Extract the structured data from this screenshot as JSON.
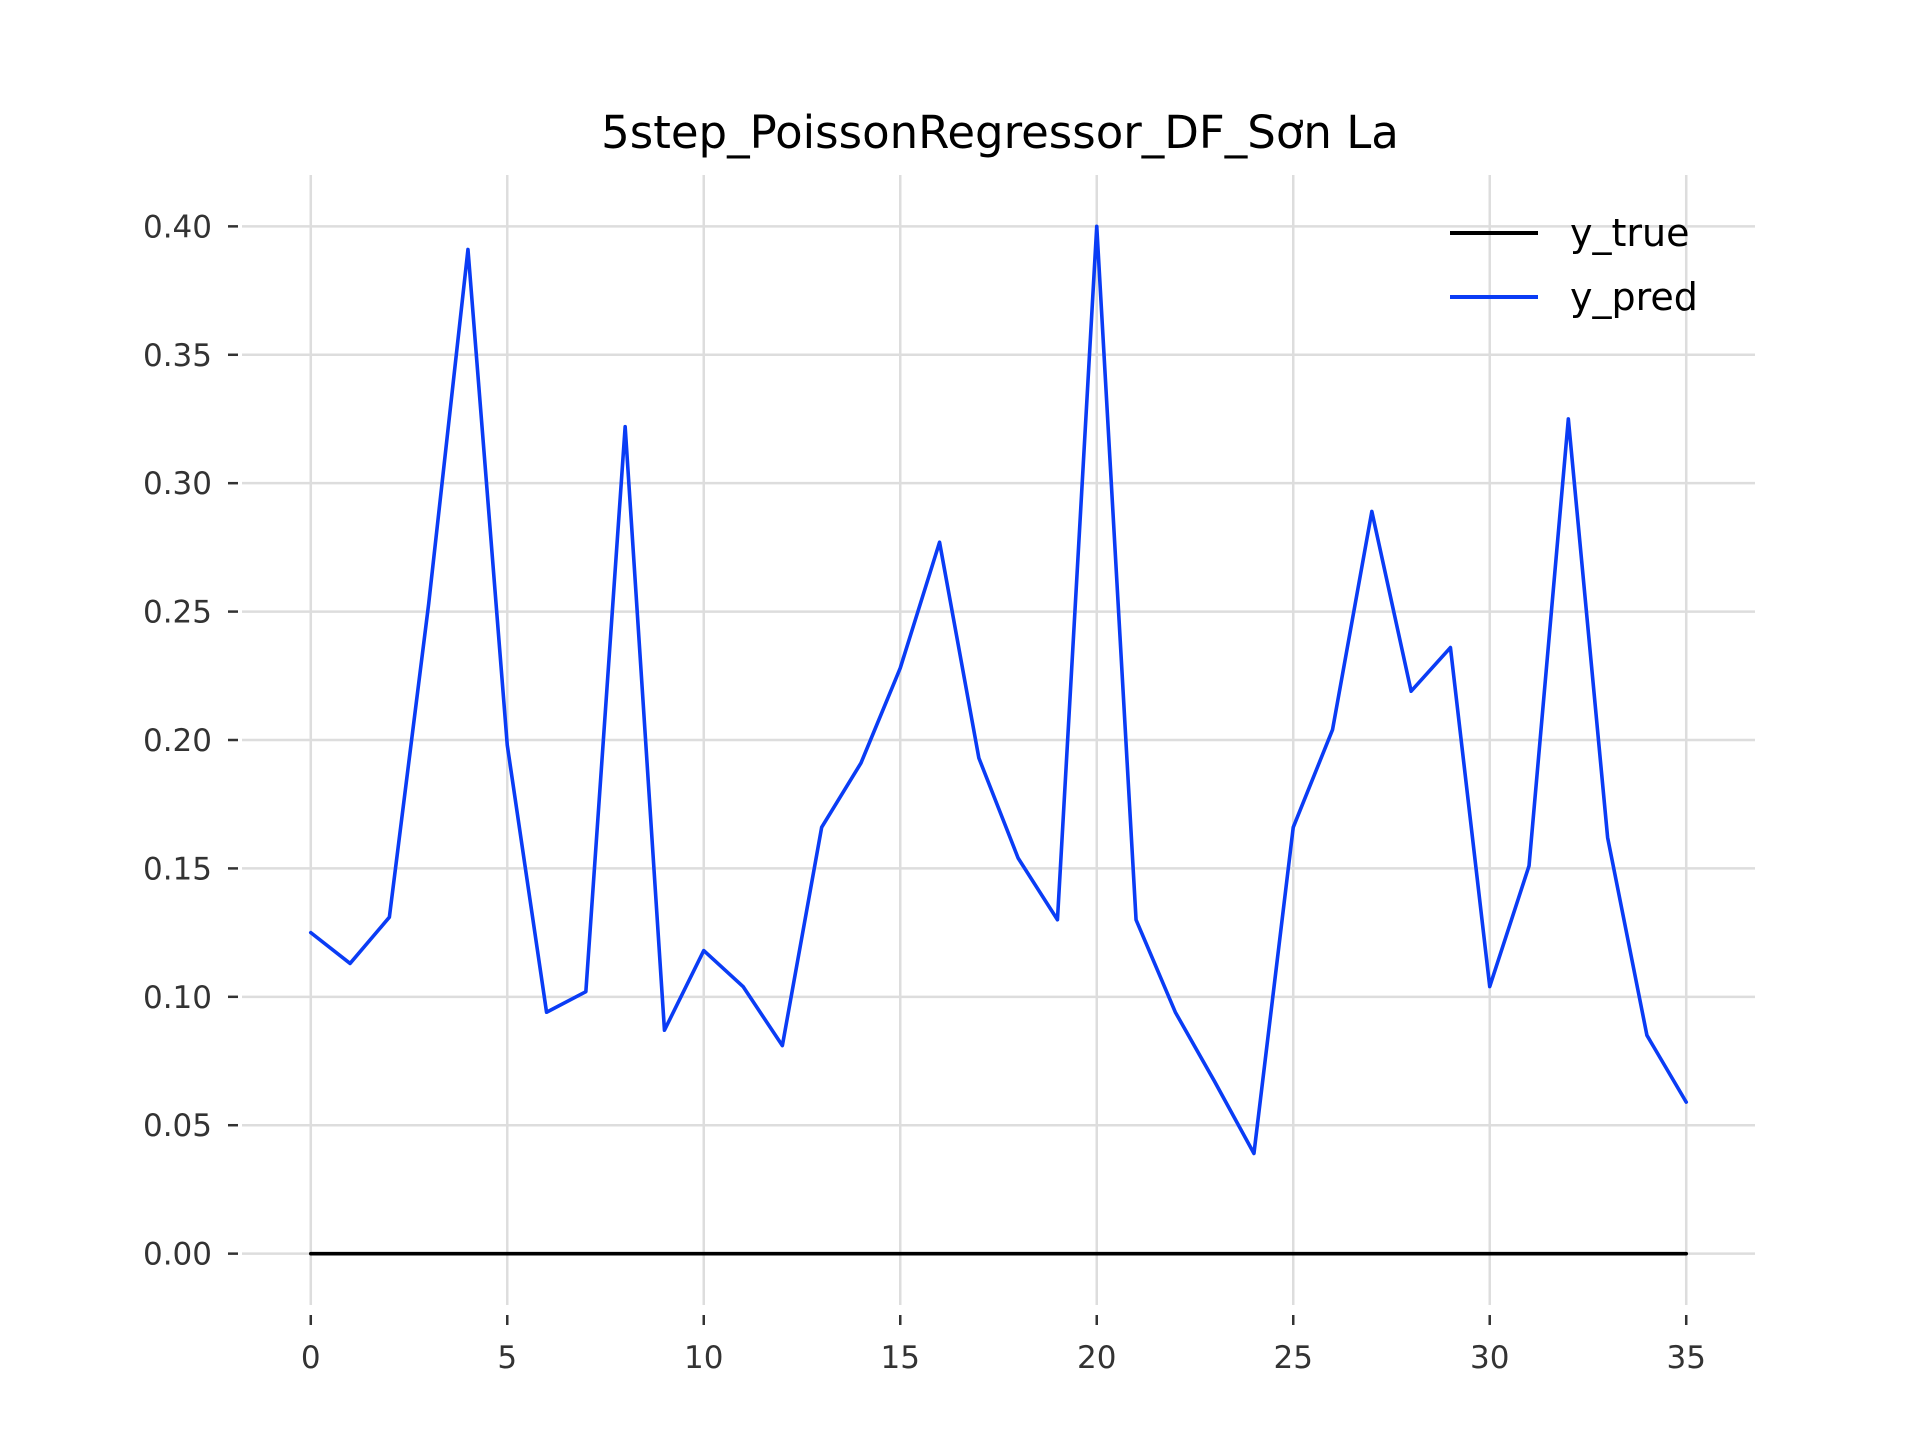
{
  "chart_data": {
    "type": "line",
    "title": "5step_PoissonRegressor_DF_Sơn La",
    "xlabel": "",
    "ylabel": "",
    "xlim": [
      -1.75,
      36.75
    ],
    "ylim": [
      -0.02,
      0.42
    ],
    "grid": true,
    "legend_position": "top-right",
    "x_ticks": [
      0,
      5,
      10,
      15,
      20,
      25,
      30,
      35
    ],
    "x_tick_labels": [
      "0",
      "5",
      "10",
      "15",
      "20",
      "25",
      "30",
      "35"
    ],
    "y_ticks": [
      0.0,
      0.05,
      0.1,
      0.15,
      0.2,
      0.25,
      0.3,
      0.35,
      0.4
    ],
    "y_tick_labels": [
      "0.00",
      "0.05",
      "0.10",
      "0.15",
      "0.20",
      "0.25",
      "0.30",
      "0.35",
      "0.40"
    ],
    "x": [
      0,
      1,
      2,
      3,
      4,
      5,
      6,
      7,
      8,
      9,
      10,
      11,
      12,
      13,
      14,
      15,
      16,
      17,
      18,
      19,
      20,
      21,
      22,
      23,
      24,
      25,
      26,
      27,
      28,
      29,
      30,
      31,
      32,
      33,
      34,
      35
    ],
    "series": [
      {
        "name": "y_true",
        "color": "#000000",
        "values": [
          0,
          0,
          0,
          0,
          0,
          0,
          0,
          0,
          0,
          0,
          0,
          0,
          0,
          0,
          0,
          0,
          0,
          0,
          0,
          0,
          0,
          0,
          0,
          0,
          0,
          0,
          0,
          0,
          0,
          0,
          0,
          0,
          0,
          0,
          0,
          0
        ]
      },
      {
        "name": "y_pred",
        "color": "#0a3cf5",
        "values": [
          0.125,
          0.113,
          0.131,
          0.253,
          0.391,
          0.198,
          0.094,
          0.102,
          0.322,
          0.087,
          0.118,
          0.104,
          0.081,
          0.166,
          0.191,
          0.228,
          0.277,
          0.193,
          0.154,
          0.13,
          0.4,
          0.13,
          0.094,
          0.067,
          0.039,
          0.166,
          0.204,
          0.289,
          0.219,
          0.236,
          0.104,
          0.151,
          0.325,
          0.162,
          0.085,
          0.059
        ]
      }
    ]
  }
}
